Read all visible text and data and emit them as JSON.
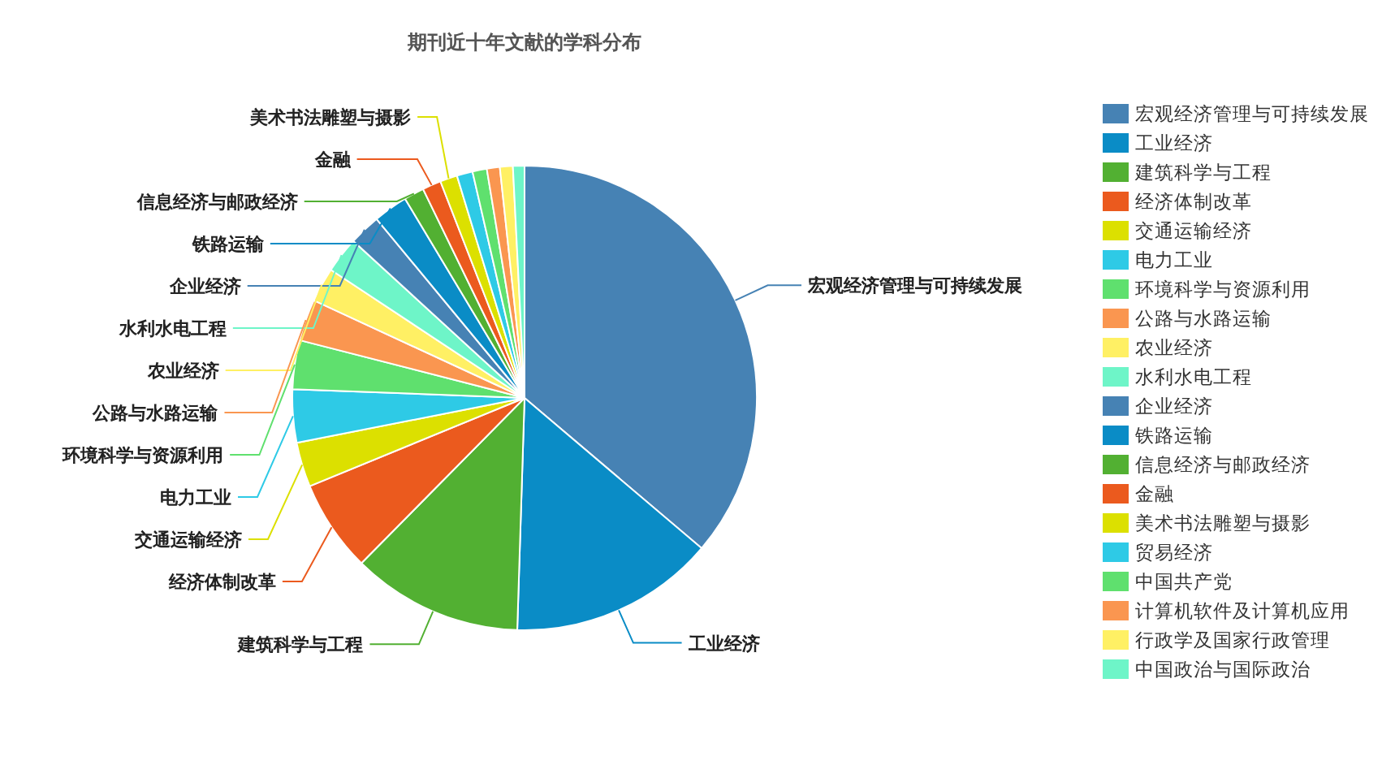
{
  "chart_data": {
    "type": "pie",
    "title": "期刊近十年文献的学科分布",
    "categories": [
      "宏观经济管理与可持续发展",
      "工业经济",
      "建筑科学与工程",
      "经济体制改革",
      "交通运输经济",
      "电力工业",
      "环境科学与资源利用",
      "公路与水路运输",
      "农业经济",
      "水利水电工程",
      "企业经济",
      "铁路运输",
      "信息经济与邮政经济",
      "金融",
      "美术书法雕塑与摄影",
      "贸易经济",
      "中国共产党",
      "计算机软件及计算机应用",
      "行政学及国家行政管理",
      "中国政治与国际政治"
    ],
    "values": [
      36.2,
      14.3,
      11.9,
      6.4,
      3.1,
      3.7,
      3.4,
      2.9,
      2.4,
      2.5,
      2.2,
      2.4,
      1.4,
      1.3,
      1.2,
      1.1,
      1.0,
      0.9,
      0.9,
      0.8
    ],
    "colors": [
      "#4682b4",
      "#0a8cc6",
      "#52b032",
      "#eb5a1e",
      "#dce000",
      "#2ecae6",
      "#5fe06e",
      "#fa9650",
      "#fff064",
      "#6ef5c8",
      "#4682b4",
      "#0a8cc6",
      "#52b032",
      "#eb5a1e",
      "#dce000",
      "#2ecae6",
      "#5fe06e",
      "#fa9650",
      "#fff064",
      "#6ef5c8"
    ],
    "legend": "right"
  }
}
